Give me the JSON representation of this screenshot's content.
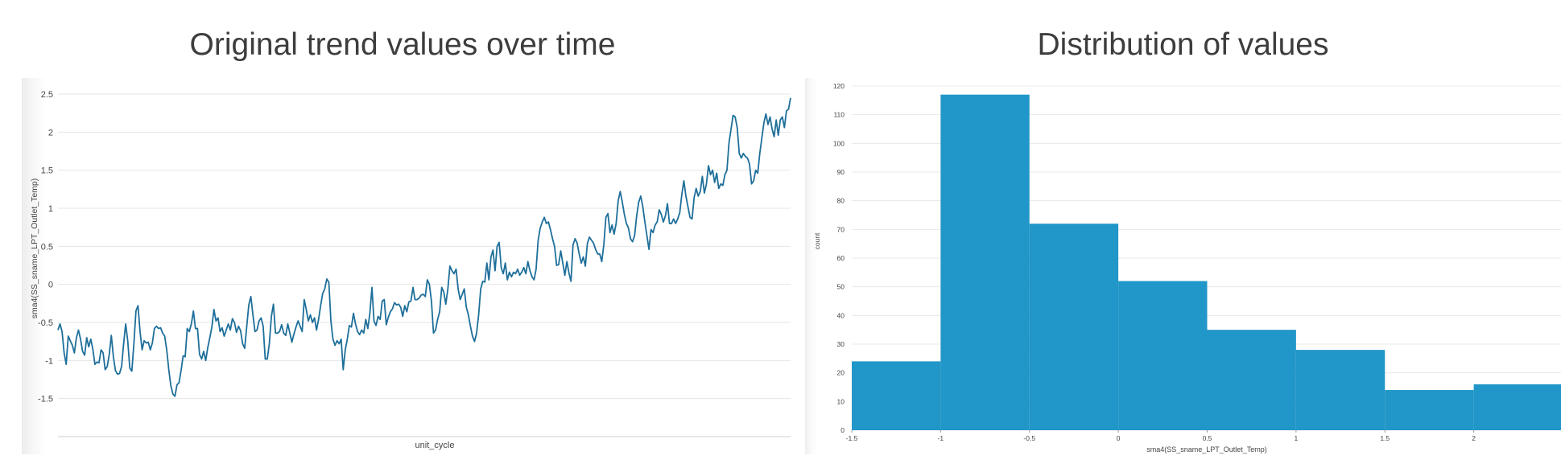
{
  "charts": [
    {
      "id": "trend",
      "title": "Original trend values over time",
      "chart_data": {
        "type": "line",
        "title": "Original trend values over time",
        "xlabel": "unit_cycle",
        "ylabel": "sma4(SS_sname_LPT_Outlet_Temp)",
        "ylim": [
          -2,
          2.5
        ],
        "yticks": [
          2.5,
          2,
          1.5,
          1,
          0.5,
          0,
          -0.5,
          -1,
          -1.5
        ],
        "grid": true,
        "series": [
          {
            "color": "#1e6f9a",
            "values": [
              -0.6,
              -0.52,
              -0.62,
              -0.9,
              -1.05,
              -0.68,
              -0.74,
              -0.8,
              -0.9,
              -0.7,
              -0.6,
              -0.72,
              -0.88,
              -0.93,
              -0.7,
              -0.82,
              -0.72,
              -0.85,
              -1.05,
              -1.02,
              -1.03,
              -0.86,
              -0.9,
              -1.12,
              -1.08,
              -0.92,
              -0.67,
              -0.95,
              -1.13,
              -1.18,
              -1.17,
              -1.08,
              -0.78,
              -0.52,
              -0.74,
              -1.1,
              -1.14,
              -0.78,
              -0.35,
              -0.28,
              -0.62,
              -0.86,
              -0.74,
              -0.77,
              -0.76,
              -0.86,
              -0.77,
              -0.58,
              -0.55,
              -0.58,
              -0.57,
              -0.64,
              -0.68,
              -0.86,
              -1.12,
              -1.33,
              -1.44,
              -1.47,
              -1.32,
              -1.29,
              -1.13,
              -0.94,
              -0.95,
              -0.58,
              -0.62,
              -0.52,
              -0.35,
              -0.58,
              -0.58,
              -0.92,
              -0.98,
              -0.88,
              -1.0,
              -0.83,
              -0.7,
              -0.56,
              -0.33,
              -0.48,
              -0.44,
              -0.62,
              -0.57,
              -0.68,
              -0.6,
              -0.52,
              -0.6,
              -0.45,
              -0.5,
              -0.63,
              -0.55,
              -0.61,
              -0.78,
              -0.84,
              -0.55,
              -0.27,
              -0.16,
              -0.4,
              -0.62,
              -0.6,
              -0.48,
              -0.44,
              -0.55,
              -0.98,
              -0.98,
              -0.78,
              -0.42,
              -0.26,
              -0.64,
              -0.64,
              -0.62,
              -0.53,
              -0.64,
              -0.67,
              -0.52,
              -0.64,
              -0.76,
              -0.65,
              -0.56,
              -0.48,
              -0.55,
              -0.62,
              -0.2,
              -0.33,
              -0.48,
              -0.4,
              -0.5,
              -0.44,
              -0.6,
              -0.46,
              -0.28,
              -0.12,
              -0.06,
              0.07,
              0.03,
              -0.48,
              -0.72,
              -0.8,
              -0.74,
              -0.78,
              -0.72,
              -1.12,
              -0.86,
              -0.72,
              -0.54,
              -0.56,
              -0.38,
              -0.52,
              -0.62,
              -0.66,
              -0.6,
              -0.64,
              -0.46,
              -0.58,
              -0.38,
              -0.04,
              -0.48,
              -0.54,
              -0.42,
              -0.46,
              -0.22,
              -0.2,
              -0.53,
              -0.43,
              -0.36,
              -0.32,
              -0.24,
              -0.27,
              -0.26,
              -0.3,
              -0.42,
              -0.28,
              -0.36,
              -0.23,
              -0.22,
              -0.04,
              -0.2,
              -0.2,
              -0.18,
              -0.14,
              -0.13,
              -0.16,
              0.06,
              0.0,
              -0.22,
              -0.64,
              -0.6,
              -0.46,
              -0.36,
              -0.04,
              -0.1,
              -0.26,
              -0.06,
              0.24,
              0.18,
              0.14,
              0.2,
              -0.06,
              -0.2,
              -0.13,
              -0.06,
              -0.3,
              -0.4,
              -0.55,
              -0.68,
              -0.75,
              -0.64,
              -0.4,
              -0.06,
              0.04,
              0.03,
              0.28,
              0.06,
              0.36,
              0.45,
              0.18,
              0.5,
              0.55,
              0.22,
              0.14,
              0.28,
              0.06,
              0.16,
              0.1,
              0.16,
              0.14,
              0.2,
              0.12,
              0.16,
              0.22,
              0.14,
              0.3,
              0.18,
              0.1,
              0.06,
              0.2,
              0.58,
              0.74,
              0.82,
              0.88,
              0.8,
              0.82,
              0.72,
              0.6,
              0.5,
              0.25,
              0.26,
              0.44,
              0.28,
              0.12,
              0.3,
              0.15,
              0.04,
              0.52,
              0.6,
              0.54,
              0.4,
              0.28,
              0.36,
              0.24,
              0.54,
              0.62,
              0.58,
              0.54,
              0.46,
              0.4,
              0.4,
              0.3,
              0.52,
              0.88,
              0.93,
              0.68,
              0.78,
              0.66,
              0.8,
              1.1,
              1.22,
              1.08,
              0.92,
              0.8,
              0.74,
              0.6,
              0.56,
              0.64,
              0.9,
              1.08,
              1.16,
              1.02,
              0.82,
              0.64,
              0.46,
              0.72,
              0.68,
              0.78,
              0.82,
              0.98,
              0.92,
              0.82,
              0.9,
              1.06,
              0.8,
              0.8,
              0.86,
              0.8,
              0.86,
              0.94,
              1.18,
              1.36,
              1.16,
              1.02,
              0.88,
              0.86,
              1.14,
              1.26,
              1.16,
              1.22,
              1.42,
              1.2,
              1.32,
              1.56,
              1.44,
              1.5,
              1.34,
              1.46,
              1.26,
              1.32,
              1.3,
              1.44,
              1.5,
              1.86,
              2.04,
              2.22,
              2.2,
              2.06,
              1.72,
              1.66,
              1.72,
              1.68,
              1.66,
              1.58,
              1.32,
              1.36,
              1.5,
              1.46,
              1.72,
              1.92,
              2.12,
              2.24,
              2.1,
              2.2,
              2.04,
              1.94,
              2.16,
              1.96,
              2.16,
              2.2,
              2.06,
              2.28,
              2.3,
              2.45
            ]
          }
        ]
      }
    },
    {
      "id": "dist",
      "title": "Distribution of values",
      "chart_data": {
        "type": "bar",
        "title": "Distribution of values",
        "xlabel": "sma4(SS_sname_LPT_Outlet_Temp)",
        "ylabel": "count",
        "xlim": [
          -1.5,
          2.5
        ],
        "ylim": [
          0,
          120
        ],
        "xticks": [
          -1.5,
          -1,
          -0.5,
          0,
          0.5,
          1,
          1.5,
          2
        ],
        "yticks": [
          0,
          10,
          20,
          30,
          40,
          50,
          60,
          70,
          80,
          90,
          100,
          110,
          120
        ],
        "grid": true,
        "color": "#2196c8",
        "bins": [
          {
            "start": -1.5,
            "end": -1.0,
            "count": 24
          },
          {
            "start": -1.0,
            "end": -0.5,
            "count": 117
          },
          {
            "start": -0.5,
            "end": 0.0,
            "count": 72
          },
          {
            "start": 0.0,
            "end": 0.5,
            "count": 52
          },
          {
            "start": 0.5,
            "end": 1.0,
            "count": 35
          },
          {
            "start": 1.0,
            "end": 1.5,
            "count": 28
          },
          {
            "start": 1.5,
            "end": 2.0,
            "count": 14
          },
          {
            "start": 2.0,
            "end": 2.5,
            "count": 16
          }
        ]
      }
    }
  ]
}
